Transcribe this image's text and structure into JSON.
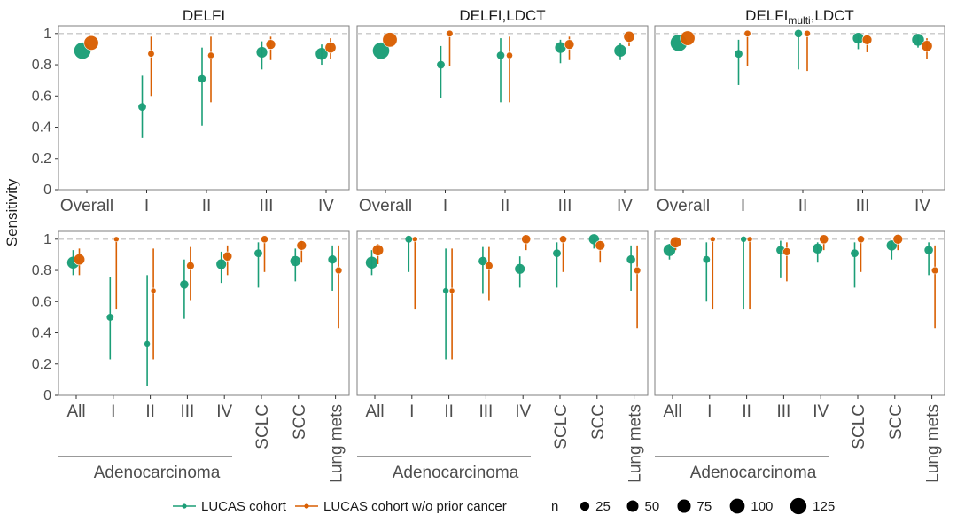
{
  "figure": {
    "ylabel": "Sensitivity",
    "group_label": "Adenocarcinoma",
    "colors": {
      "LUCAS cohort": "#1b9e77",
      "LUCAS cohort w/o prior cancer": "#d95f02"
    },
    "reference_line": 1.0,
    "ylim": [
      0,
      1.05
    ],
    "yticks": [
      0,
      0.2,
      0.4,
      0.6,
      0.8,
      1
    ],
    "ytick_labels": [
      "0",
      "0.2",
      "0.4",
      "0.6",
      "0.8",
      "1"
    ],
    "panel_titles": [
      "DELFI",
      "DELFI,LDCT",
      "DELFI_multi,LDCT"
    ]
  },
  "legend": {
    "series": [
      "LUCAS cohort",
      "LUCAS cohort w/o prior cancer"
    ],
    "size_title": "n",
    "sizes": [
      25,
      50,
      75,
      100,
      125
    ]
  },
  "chart_data": [
    {
      "type": "scatter",
      "title": "DELFI",
      "row": "stage",
      "categories": [
        "Overall",
        "I",
        "II",
        "III",
        "IV"
      ],
      "series": [
        {
          "name": "LUCAS cohort",
          "values": [
            0.89,
            0.53,
            0.71,
            0.88,
            0.87
          ],
          "lower": [
            0.89,
            0.33,
            0.41,
            0.77,
            0.8
          ],
          "upper": [
            0.89,
            0.73,
            0.91,
            0.95,
            0.93
          ],
          "n": [
            130,
            15,
            14,
            42,
            56
          ]
        },
        {
          "name": "LUCAS cohort w/o prior cancer",
          "values": [
            0.94,
            0.87,
            0.86,
            0.93,
            0.91
          ],
          "lower": [
            0.94,
            0.6,
            0.56,
            0.83,
            0.84
          ],
          "upper": [
            0.94,
            0.98,
            0.98,
            0.98,
            0.97
          ],
          "n": [
            95,
            8,
            7,
            30,
            43
          ]
        }
      ]
    },
    {
      "type": "scatter",
      "title": "DELFI,LDCT",
      "row": "stage",
      "categories": [
        "Overall",
        "I",
        "II",
        "III",
        "IV"
      ],
      "series": [
        {
          "name": "LUCAS cohort",
          "values": [
            0.89,
            0.8,
            0.86,
            0.91,
            0.89
          ],
          "lower": [
            0.89,
            0.59,
            0.56,
            0.81,
            0.83
          ],
          "upper": [
            0.89,
            0.92,
            0.97,
            0.96,
            0.94
          ],
          "n": [
            130,
            15,
            14,
            42,
            56
          ]
        },
        {
          "name": "LUCAS cohort w/o prior cancer",
          "values": [
            0.96,
            1.0,
            0.86,
            0.93,
            0.98
          ],
          "lower": [
            0.96,
            0.79,
            0.56,
            0.83,
            0.92
          ],
          "upper": [
            0.96,
            1.0,
            0.98,
            0.98,
            1.0
          ],
          "n": [
            95,
            8,
            7,
            30,
            43
          ]
        }
      ]
    },
    {
      "type": "scatter",
      "title": "DELFI_multi,LDCT",
      "row": "stage",
      "categories": [
        "Overall",
        "I",
        "II",
        "III",
        "IV"
      ],
      "series": [
        {
          "name": "LUCAS cohort",
          "values": [
            0.94,
            0.87,
            1.0,
            0.97,
            0.96
          ],
          "lower": [
            0.94,
            0.67,
            0.77,
            0.9,
            0.91
          ],
          "upper": [
            0.94,
            0.96,
            1.0,
            0.99,
            0.99
          ],
          "n": [
            130,
            15,
            14,
            42,
            56
          ]
        },
        {
          "name": "LUCAS cohort w/o prior cancer",
          "values": [
            0.97,
            1.0,
            1.0,
            0.96,
            0.92
          ],
          "lower": [
            0.97,
            0.79,
            0.76,
            0.88,
            0.84
          ],
          "upper": [
            0.97,
            1.0,
            1.0,
            0.99,
            0.97
          ],
          "n": [
            95,
            8,
            7,
            30,
            43
          ]
        }
      ]
    },
    {
      "type": "scatter",
      "title": "DELFI",
      "row": "histology",
      "categories": [
        "All",
        "I",
        "II",
        "III",
        "IV",
        "SCLC",
        "SCC",
        "Lung mets"
      ],
      "series": [
        {
          "name": "LUCAS cohort",
          "values": [
            0.85,
            0.5,
            0.33,
            0.71,
            0.84,
            0.91,
            0.86,
            0.87
          ],
          "lower": [
            0.77,
            0.23,
            0.06,
            0.49,
            0.72,
            0.69,
            0.73,
            0.67
          ],
          "upper": [
            0.93,
            0.76,
            0.77,
            0.87,
            0.92,
            0.98,
            0.94,
            0.96
          ],
          "n": [
            55,
            10,
            4,
            20,
            32,
            15,
            35,
            20
          ]
        },
        {
          "name": "LUCAS cohort w/o prior cancer",
          "values": [
            0.87,
            1.0,
            0.67,
            0.83,
            0.89,
            1.0,
            0.96,
            0.8
          ],
          "lower": [
            0.77,
            0.55,
            0.23,
            0.61,
            0.77,
            0.79,
            0.85,
            0.43
          ],
          "upper": [
            0.94,
            1.0,
            0.94,
            0.95,
            0.96,
            1.0,
            0.99,
            0.96
          ],
          "n": [
            45,
            3,
            3,
            15,
            25,
            12,
            30,
            10
          ]
        }
      ]
    },
    {
      "type": "scatter",
      "title": "DELFI,LDCT",
      "row": "histology",
      "categories": [
        "All",
        "I",
        "II",
        "III",
        "IV",
        "SCLC",
        "SCC",
        "Lung mets"
      ],
      "series": [
        {
          "name": "LUCAS cohort",
          "values": [
            0.85,
            1.0,
            0.67,
            0.86,
            0.81,
            0.91,
            1.0,
            0.87
          ],
          "lower": [
            0.77,
            0.79,
            0.23,
            0.65,
            0.69,
            0.69,
            0.94,
            0.67
          ],
          "upper": [
            0.93,
            1.0,
            0.94,
            0.95,
            0.89,
            0.98,
            1.0,
            0.96
          ],
          "n": [
            55,
            10,
            4,
            20,
            32,
            15,
            35,
            20
          ]
        },
        {
          "name": "LUCAS cohort w/o prior cancer",
          "values": [
            0.93,
            1.0,
            0.67,
            0.83,
            1.0,
            1.0,
            0.96,
            0.8
          ],
          "lower": [
            0.84,
            0.55,
            0.23,
            0.61,
            0.93,
            0.79,
            0.85,
            0.43
          ],
          "upper": [
            0.97,
            1.0,
            0.94,
            0.95,
            1.0,
            1.0,
            0.99,
            0.96
          ],
          "n": [
            45,
            3,
            3,
            15,
            25,
            12,
            30,
            10
          ]
        }
      ]
    },
    {
      "type": "scatter",
      "title": "DELFI_multi,LDCT",
      "row": "histology",
      "categories": [
        "All",
        "I",
        "II",
        "III",
        "IV",
        "SCLC",
        "SCC",
        "Lung mets"
      ],
      "series": [
        {
          "name": "LUCAS cohort",
          "values": [
            0.93,
            0.87,
            1.0,
            0.93,
            0.94,
            0.91,
            0.96,
            0.93
          ],
          "lower": [
            0.87,
            0.6,
            0.55,
            0.75,
            0.85,
            0.69,
            0.87,
            0.77
          ],
          "upper": [
            0.97,
            0.98,
            1.0,
            0.99,
            0.98,
            0.98,
            0.99,
            0.98
          ],
          "n": [
            55,
            10,
            4,
            20,
            32,
            15,
            35,
            20
          ]
        },
        {
          "name": "LUCAS cohort w/o prior cancer",
          "values": [
            0.98,
            1.0,
            1.0,
            0.92,
            1.0,
            1.0,
            1.0,
            0.8
          ],
          "lower": [
            0.93,
            0.55,
            0.55,
            0.73,
            0.93,
            0.79,
            0.93,
            0.43
          ],
          "upper": [
            1.0,
            1.0,
            1.0,
            0.98,
            1.0,
            1.0,
            1.0,
            0.96
          ],
          "n": [
            45,
            3,
            3,
            15,
            25,
            12,
            30,
            10
          ]
        }
      ]
    }
  ]
}
